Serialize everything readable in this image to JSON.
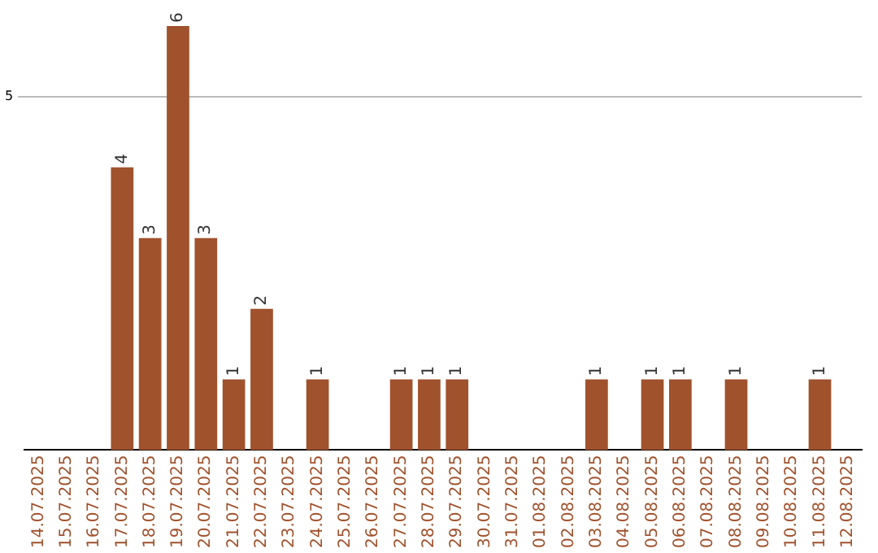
{
  "chart_data": {
    "type": "bar",
    "categories": [
      "14.07.2025",
      "15.07.2025",
      "16.07.2025",
      "17.07.2025",
      "18.07.2025",
      "19.07.2025",
      "20.07.2025",
      "21.07.2025",
      "22.07.2025",
      "23.07.2025",
      "24.07.2025",
      "25.07.2025",
      "26.07.2025",
      "27.07.2025",
      "28.07.2025",
      "29.07.2025",
      "30.07.2025",
      "31.07.2025",
      "01.08.2025",
      "02.08.2025",
      "03.08.2025",
      "04.08.2025",
      "05.08.2025",
      "06.08.2025",
      "07.08.2025",
      "08.08.2025",
      "09.08.2025",
      "10.08.2025",
      "11.08.2025",
      "12.08.2025"
    ],
    "values": [
      0,
      0,
      0,
      4,
      3,
      6,
      3,
      1,
      2,
      0,
      1,
      0,
      0,
      1,
      1,
      1,
      0,
      0,
      0,
      0,
      1,
      0,
      1,
      1,
      0,
      1,
      0,
      0,
      1,
      0
    ],
    "value_labels": [
      null,
      null,
      null,
      "4",
      "3",
      "6",
      "3",
      "1",
      "2",
      null,
      "1",
      null,
      null,
      "1",
      "1",
      "1",
      null,
      null,
      null,
      null,
      "1",
      null,
      "1",
      "1",
      null,
      "1",
      null,
      null,
      "1",
      null
    ],
    "color": "#a0522d",
    "ylim": [
      0,
      6
    ],
    "yticks": [
      5
    ],
    "grid": "y"
  }
}
